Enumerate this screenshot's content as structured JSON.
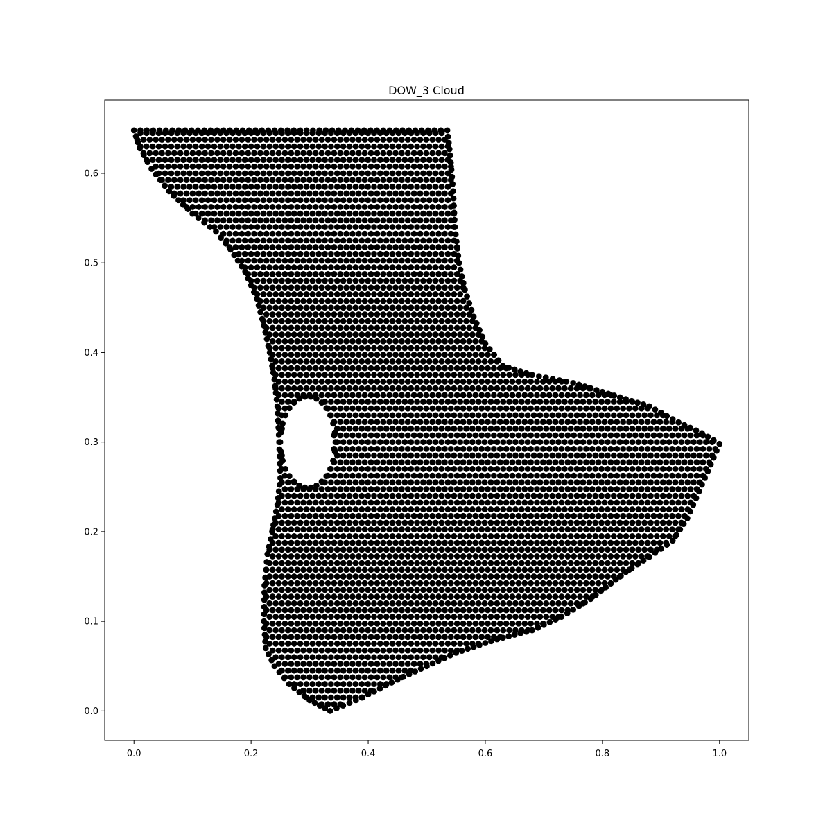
{
  "chart_data": {
    "type": "scatter",
    "title": "DOW_3 Cloud",
    "xlabel": "",
    "ylabel": "",
    "xlim": [
      -0.05,
      1.05
    ],
    "ylim": [
      -0.033,
      0.682
    ],
    "xticks": [
      0.0,
      0.2,
      0.4,
      0.6,
      0.8,
      1.0
    ],
    "xtick_labels": [
      "0.0",
      "0.2",
      "0.4",
      "0.6",
      "0.8",
      "1.0"
    ],
    "yticks": [
      0.0,
      0.1,
      0.2,
      0.3,
      0.4,
      0.5,
      0.6
    ],
    "ytick_labels": [
      "0.0",
      "0.1",
      "0.2",
      "0.3",
      "0.4",
      "0.5",
      "0.6"
    ],
    "grid": false,
    "marker_color": "#000000",
    "series": [
      {
        "description": "Point cloud filling a boot-shaped region with a circular hole",
        "boundary": [
          [
            0.0,
            0.648
          ],
          [
            0.535,
            0.648
          ],
          [
            0.54,
            0.62
          ],
          [
            0.545,
            0.58
          ],
          [
            0.548,
            0.54
          ],
          [
            0.555,
            0.5
          ],
          [
            0.565,
            0.47
          ],
          [
            0.58,
            0.44
          ],
          [
            0.6,
            0.41
          ],
          [
            0.63,
            0.385
          ],
          [
            0.68,
            0.375
          ],
          [
            0.75,
            0.366
          ],
          [
            0.82,
            0.352
          ],
          [
            0.88,
            0.34
          ],
          [
            0.93,
            0.322
          ],
          [
            0.97,
            0.31
          ],
          [
            1.0,
            0.298
          ],
          [
            0.985,
            0.275
          ],
          [
            0.965,
            0.245
          ],
          [
            0.945,
            0.215
          ],
          [
            0.92,
            0.19
          ],
          [
            0.88,
            0.172
          ],
          [
            0.84,
            0.155
          ],
          [
            0.78,
            0.125
          ],
          [
            0.73,
            0.105
          ],
          [
            0.68,
            0.09
          ],
          [
            0.62,
            0.08
          ],
          [
            0.55,
            0.065
          ],
          [
            0.5,
            0.05
          ],
          [
            0.45,
            0.035
          ],
          [
            0.39,
            0.015
          ],
          [
            0.335,
            0.0
          ],
          [
            0.3,
            0.012
          ],
          [
            0.265,
            0.03
          ],
          [
            0.24,
            0.05
          ],
          [
            0.225,
            0.07
          ],
          [
            0.222,
            0.1
          ],
          [
            0.223,
            0.14
          ],
          [
            0.228,
            0.175
          ],
          [
            0.236,
            0.2
          ],
          [
            0.245,
            0.23
          ],
          [
            0.25,
            0.26
          ],
          [
            0.248,
            0.3
          ],
          [
            0.245,
            0.34
          ],
          [
            0.24,
            0.37
          ],
          [
            0.232,
            0.4
          ],
          [
            0.222,
            0.43
          ],
          [
            0.21,
            0.46
          ],
          [
            0.19,
            0.49
          ],
          [
            0.165,
            0.515
          ],
          [
            0.14,
            0.535
          ],
          [
            0.1,
            0.555
          ],
          [
            0.06,
            0.58
          ],
          [
            0.03,
            0.605
          ],
          [
            0.01,
            0.628
          ]
        ],
        "hole": {
          "cx": 0.297,
          "cy": 0.3,
          "rx": 0.045,
          "ry": 0.05
        },
        "row_spacing_y": 0.0075,
        "point_spacing_x": 0.0105
      }
    ]
  }
}
